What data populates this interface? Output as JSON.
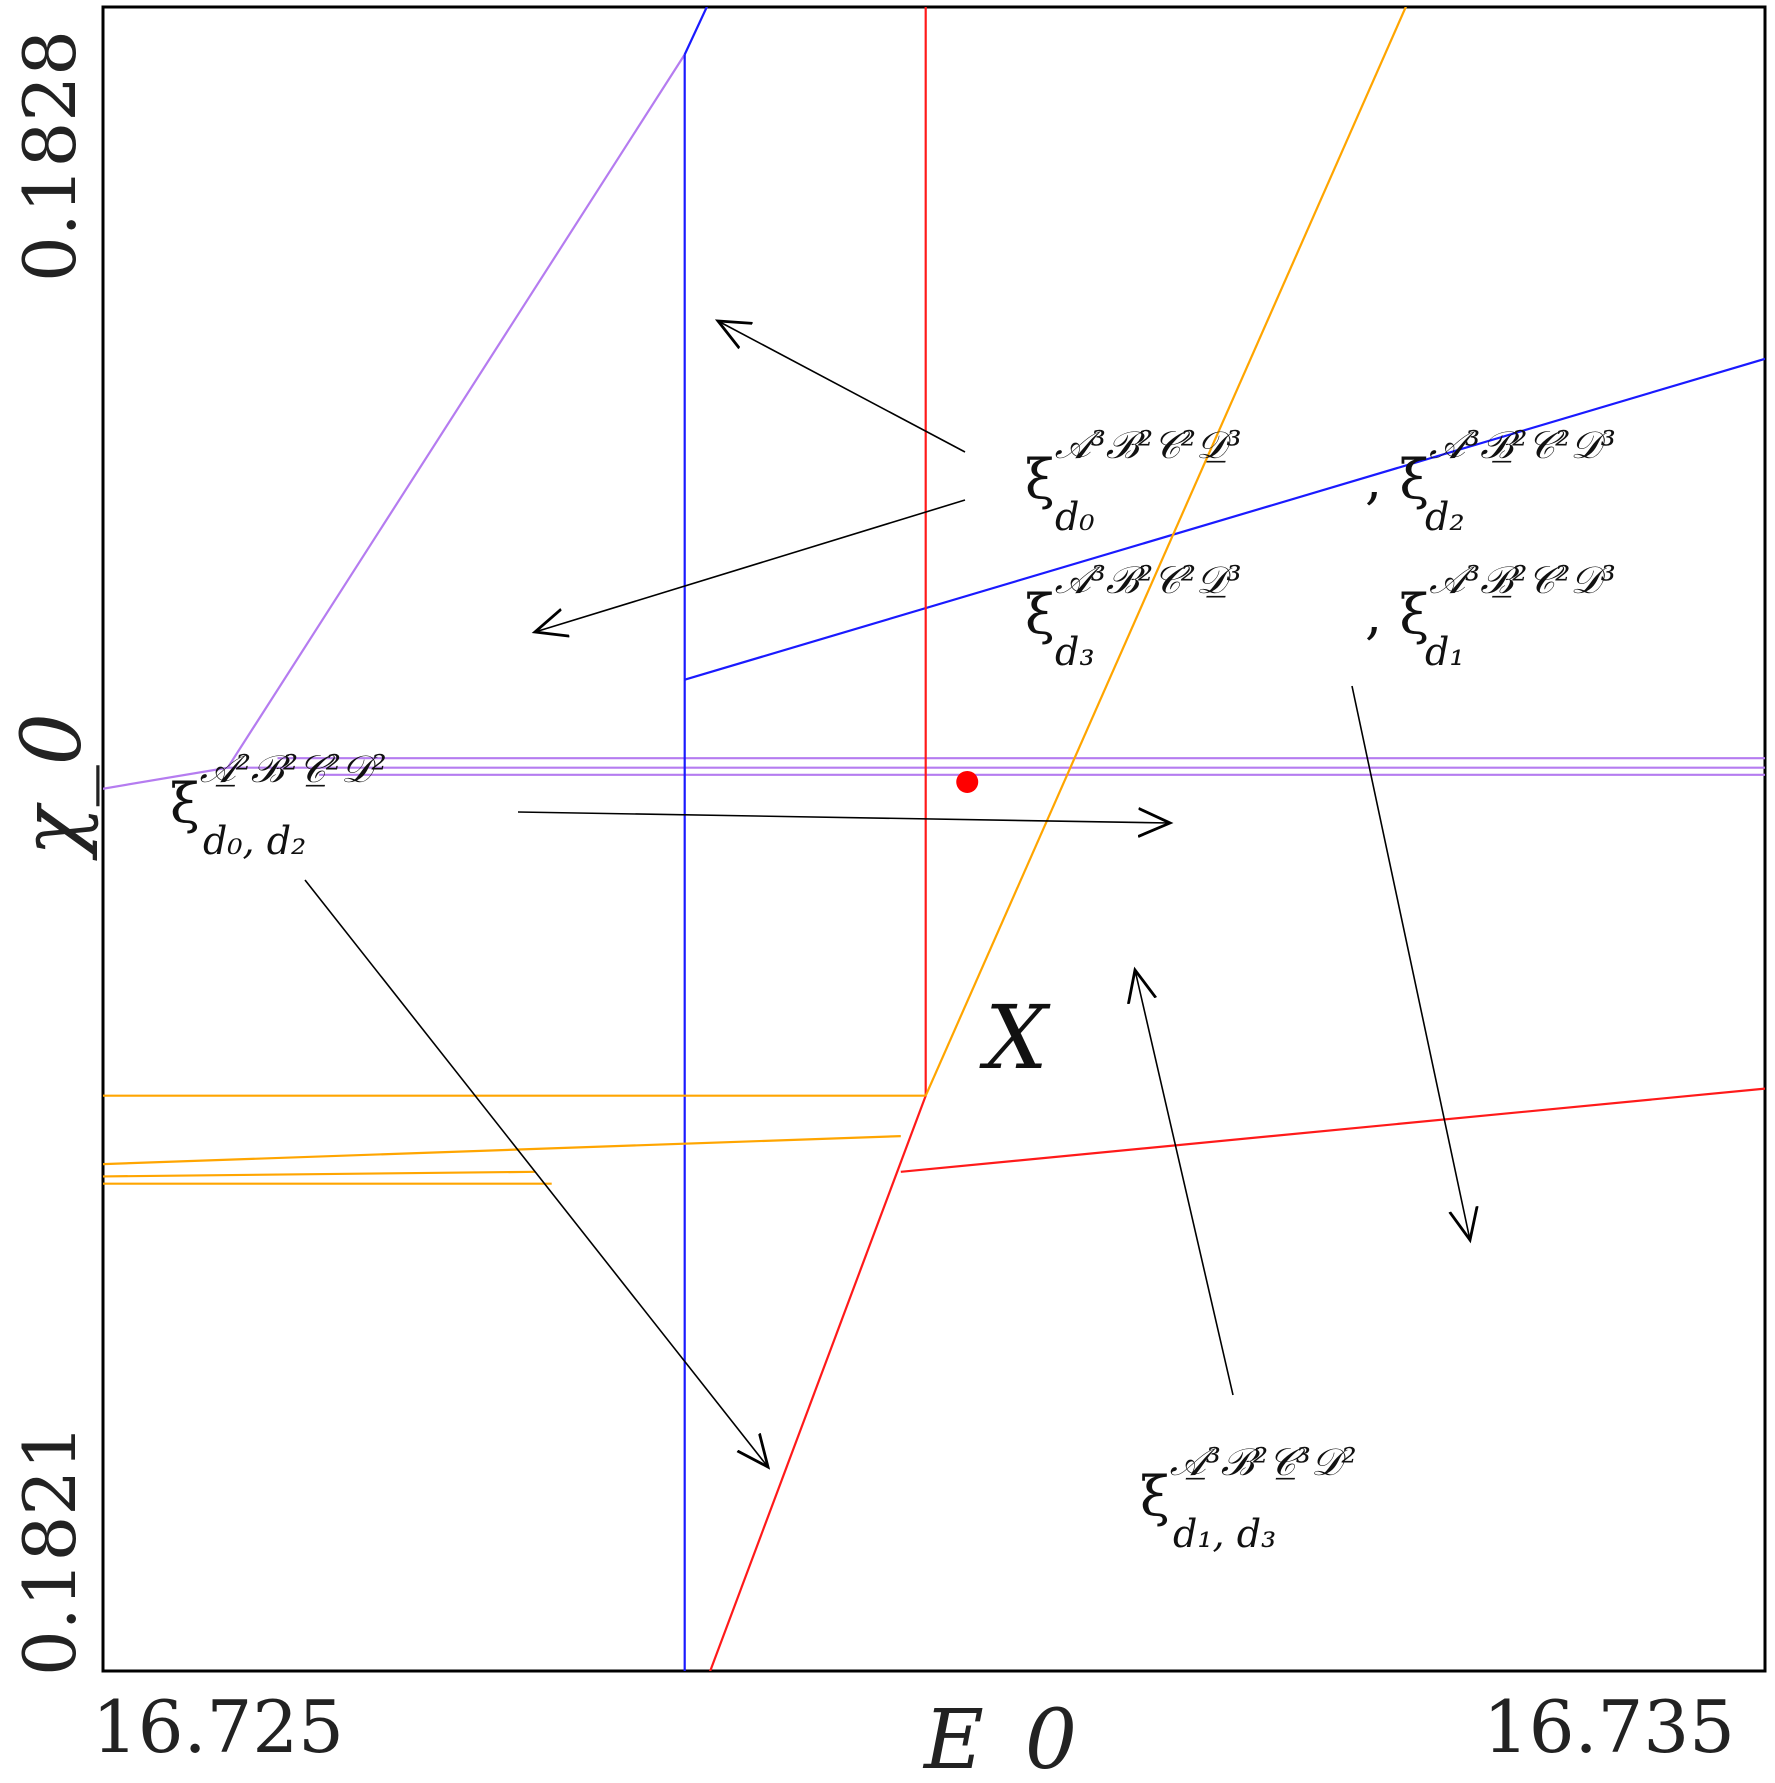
{
  "chart_data": {
    "type": "line",
    "title": "",
    "xlabel": "E_0",
    "ylabel": "χ_0",
    "xlim": [
      16.725,
      16.735
    ],
    "ylim": [
      0.1821,
      0.1828
    ],
    "xticks": [
      16.725,
      16.735
    ],
    "yticks": [
      0.1821,
      0.1828
    ],
    "xtick_labels": [
      "16.725",
      "16.735"
    ],
    "ytick_labels": [
      "0.1821",
      "0.1828"
    ],
    "grid": false,
    "legend": "none",
    "series": [
      {
        "color": "#b57cf0",
        "points": [
          [
            16.7249,
            0.18247
          ],
          [
            16.72575,
            0.18248
          ],
          [
            16.7285,
            0.18278
          ]
        ]
      },
      {
        "color": "#b57cf0",
        "points": [
          [
            16.72575,
            0.18248
          ],
          [
            16.735,
            0.18248
          ]
        ]
      },
      {
        "color": "#b57cf0",
        "points": [
          [
            16.72605,
            0.182484
          ],
          [
            16.735,
            0.182484
          ]
        ]
      },
      {
        "color": "#b57cf0",
        "points": [
          [
            16.7263,
            0.182477
          ],
          [
            16.735,
            0.182477
          ]
        ]
      },
      {
        "color": "#1a1aff",
        "points": [
          [
            16.7285,
            0.18278
          ],
          [
            16.72995,
            0.182998
          ]
        ]
      },
      {
        "color": "#1a1aff",
        "points": [
          [
            16.7285,
            0.18278
          ],
          [
            16.7285,
            0.18209
          ]
        ]
      },
      {
        "color": "#1a1aff",
        "points": [
          [
            16.7285,
            0.182517
          ],
          [
            16.735,
            0.182652
          ]
        ]
      },
      {
        "color": "#ff1a1a",
        "points": [
          [
            16.72995,
            0.182998
          ],
          [
            16.72995,
            0.182342
          ]
        ]
      },
      {
        "color": "#ff1a1a",
        "points": [
          [
            16.72995,
            0.182342
          ],
          [
            16.7286,
            0.18209
          ]
        ]
      },
      {
        "color": "#ff1a1a",
        "points": [
          [
            16.7298,
            0.18231
          ],
          [
            16.735,
            0.182345
          ]
        ]
      },
      {
        "color": "#ffa500",
        "points": [
          [
            16.72995,
            0.182342
          ],
          [
            16.7341,
            0.183
          ]
        ]
      },
      {
        "color": "#ffa500",
        "points": [
          [
            16.7249,
            0.182342
          ],
          [
            16.72995,
            0.182342
          ]
        ]
      },
      {
        "color": "#ffa500",
        "points": [
          [
            16.7249,
            0.182313
          ],
          [
            16.7298,
            0.182325
          ]
        ]
      },
      {
        "color": "#ffa500",
        "points": [
          [
            16.7249,
            0.182308
          ],
          [
            16.7276,
            0.18231
          ]
        ]
      },
      {
        "color": "#ffa500",
        "points": [
          [
            16.7249,
            0.182305
          ],
          [
            16.7277,
            0.182305
          ]
        ]
      },
      {
        "color": "#ffa500",
        "points": [
          [
            16.7249,
            0.182094
          ],
          [
            16.7286,
            0.182094
          ]
        ]
      }
    ],
    "marker": {
      "label": "X",
      "x": 16.7302,
      "y": 0.182474,
      "color": "#ff0000"
    },
    "annotations": [
      {
        "lines": [
          {
            "base": "ξ",
            "sup": "𝒜³ℬ²𝒞²𝒟̲³",
            "sub": "d₀",
            "sep": ", ξ",
            "sup2": "𝒜³ℬ̲²𝒞²𝒟³",
            "sub2": "d₂"
          },
          {
            "base": "ξ",
            "sup": "𝒜³ℬ²𝒞²𝒟̲³",
            "sub": "d₃",
            "sep": ", ξ",
            "sup2": "𝒜³ℬ̲²𝒞²𝒟³",
            "sub2": "d₁"
          }
        ]
      },
      {
        "lines": [
          {
            "base": "ξ",
            "sup": "𝒜̲²ℬ²𝒞̲²𝒟²",
            "sub": "d₀, d₂"
          }
        ]
      },
      {
        "lines": [
          {
            "base": "ξ",
            "sup": "𝒜̲³ℬ²𝒞̲³𝒟²",
            "sub": "d₁, d₃"
          }
        ]
      }
    ]
  }
}
